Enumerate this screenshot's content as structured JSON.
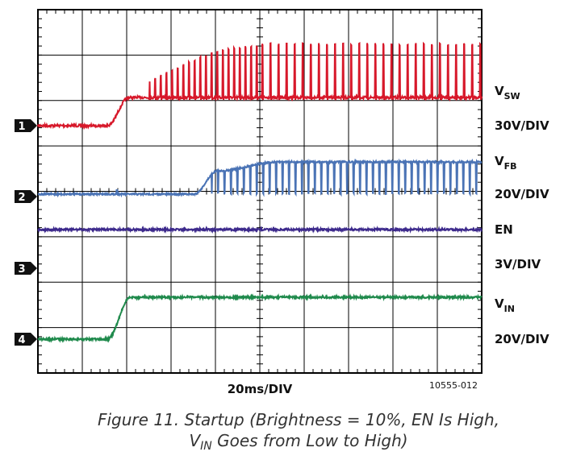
{
  "channels": [
    {
      "marker": "1",
      "label": {
        "symbol": "V",
        "subscript": "SW"
      },
      "scale": "30V/DIV"
    },
    {
      "marker": "2",
      "label": {
        "symbol": "V",
        "subscript": "FB"
      },
      "scale": "20V/DIV"
    },
    {
      "marker": "3",
      "label": {
        "symbol": "EN",
        "subscript": ""
      },
      "scale": "3V/DIV"
    },
    {
      "marker": "4",
      "label": {
        "symbol": "V",
        "subscript": "IN"
      },
      "scale": "20V/DIV"
    }
  ],
  "timebase": "20ms/DIV",
  "figure_id": "10555-012",
  "caption": {
    "line1": "Figure 11. Startup (Brightness = 10%, EN Is High,",
    "line2_symbol": "V",
    "line2_subscript": "IN",
    "line2_rest": " Goes from Low to High)"
  }
}
